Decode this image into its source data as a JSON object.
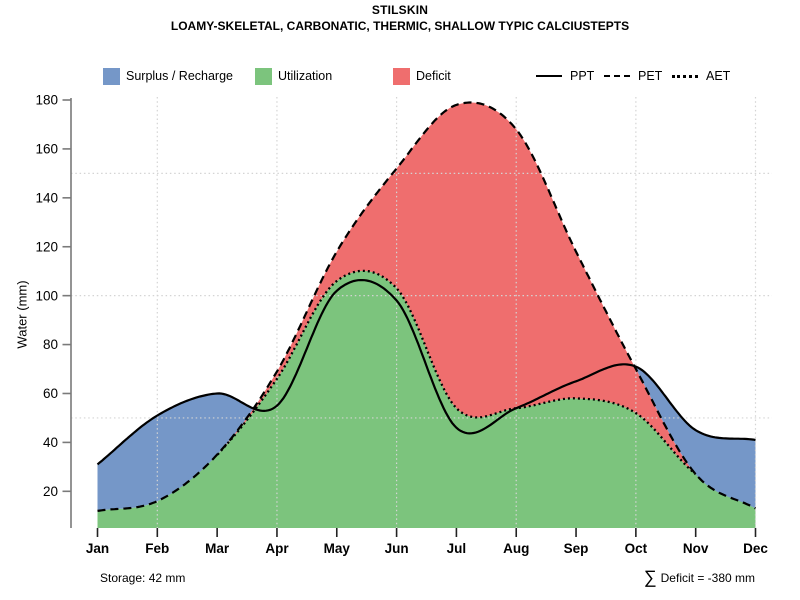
{
  "page": {
    "title": "STILSKIN",
    "subtitle": "LOAMY-SKELETAL, CARBONATIC, THERMIC, SHALLOW TYPIC CALCIUSTEPTS"
  },
  "legend": {
    "fills": [
      {
        "label": "Surplus / Recharge",
        "color": "#7597C8"
      },
      {
        "label": "Utilization",
        "color": "#7CC47D"
      },
      {
        "label": "Deficit",
        "color": "#EF6E6E"
      }
    ],
    "lines": [
      {
        "label": "PPT",
        "style": "solid"
      },
      {
        "label": "PET",
        "style": "dashed"
      },
      {
        "label": "AET",
        "style": "dotted"
      }
    ]
  },
  "footer": {
    "storage": "Storage: 42 mm",
    "sigma": "∑",
    "deficit": "Deficit = -380 mm"
  },
  "chart_data": {
    "type": "area",
    "title": "STILSKIN",
    "subtitle": "LOAMY-SKELETAL, CARBONATIC, THERMIC, SHALLOW TYPIC CALCIUSTEPTS",
    "xlabel": "",
    "ylabel": "Water (mm)",
    "categories": [
      "Jan",
      "Feb",
      "Mar",
      "Apr",
      "May",
      "Jun",
      "Jul",
      "Aug",
      "Sep",
      "Oct",
      "Nov",
      "Dec"
    ],
    "ylim": [
      5,
      180
    ],
    "y_ticks": [
      20,
      40,
      60,
      80,
      100,
      120,
      140,
      160,
      180
    ],
    "grid": {
      "y_values": [
        50,
        100,
        150
      ],
      "x_month_indices": [
        1,
        3,
        5,
        7,
        9,
        11
      ],
      "color": "#d4d4d4"
    },
    "series": [
      {
        "name": "PPT",
        "line": "solid",
        "values": [
          31,
          51,
          60,
          55,
          102,
          98,
          46,
          54,
          65,
          71,
          45,
          41
        ]
      },
      {
        "name": "PET",
        "line": "dashed",
        "values": [
          12,
          16,
          35,
          69,
          118,
          152,
          178,
          168,
          118,
          70,
          27,
          13
        ]
      },
      {
        "name": "AET",
        "line": "dotted",
        "values": [
          12,
          16,
          35,
          66,
          106,
          103,
          54,
          54,
          58,
          52,
          27,
          13
        ]
      }
    ],
    "areas": [
      {
        "name": "Surplus / Recharge",
        "color": "#7597C8",
        "rule": "between PPT and PET where PPT > PET"
      },
      {
        "name": "Utilization",
        "color": "#7CC47D",
        "rule": "under AET"
      },
      {
        "name": "Deficit",
        "color": "#EF6E6E",
        "rule": "between PET and AET where PET > AET"
      }
    ],
    "annotations": {
      "storage_mm": 42,
      "deficit_sum_mm": -380
    },
    "legend_position": "top",
    "axis_color": "#7a7a7a"
  }
}
